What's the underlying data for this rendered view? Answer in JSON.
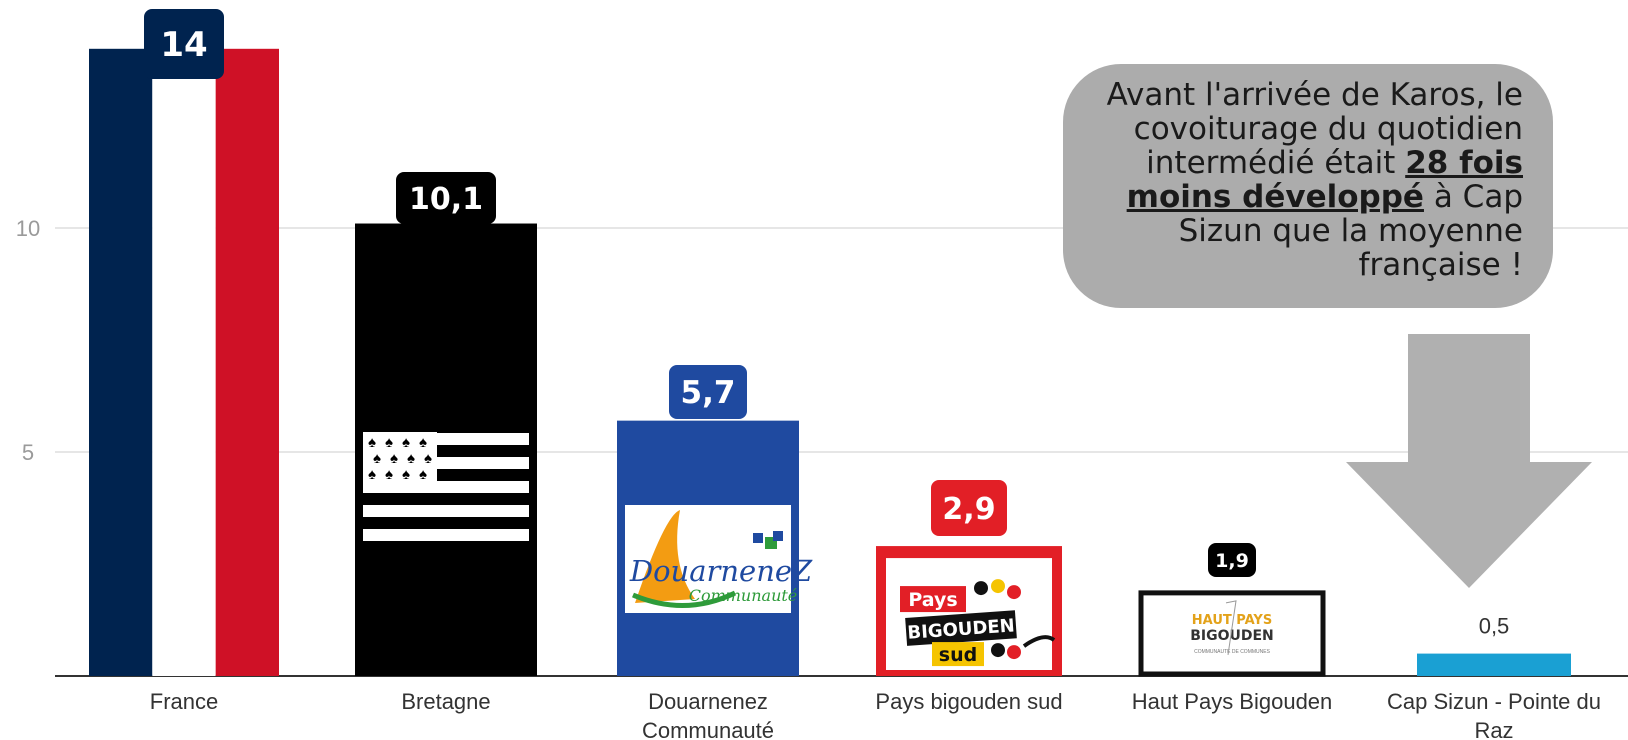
{
  "chart_data": {
    "type": "bar",
    "categories": [
      "France",
      "Bretagne",
      "Douarnenez Communauté",
      "Pays bigouden sud",
      "Haut Pays Bigouden",
      "Cap Sizun - Pointe du Raz"
    ],
    "category_lines": [
      [
        "France"
      ],
      [
        "Bretagne"
      ],
      [
        "Douarnenez",
        "Communauté"
      ],
      [
        "Pays bigouden sud"
      ],
      [
        "Haut Pays Bigouden"
      ],
      [
        "Cap Sizun - Pointe du",
        "Raz"
      ]
    ],
    "values": [
      14,
      10.1,
      5.7,
      2.9,
      1.9,
      0.5
    ],
    "value_labels": [
      "14",
      "10,1",
      "5,7",
      "2,9",
      "1,9",
      "0,5"
    ],
    "yticks": [
      5,
      10
    ],
    "ytick_labels": [
      "5",
      "10"
    ],
    "ylim": [
      0,
      14
    ],
    "grid": true,
    "title": "",
    "xlabel": "",
    "ylabel": ""
  },
  "callout": {
    "line1": "Avant l'arrivée de Karos, le",
    "line2": "covoiturage du quotidien",
    "line3_pre": "intermédié était ",
    "line3_bold": "28 fois",
    "line4_bold": "moins développé",
    "line4_post": " à Cap",
    "line5": "Sizun que la moyenne",
    "line6": "française !"
  },
  "logos": {
    "douarnenez_main": "DouarneneZ",
    "douarnenez_sub": "Communauté",
    "pbs_pays": "Pays",
    "pbs_bigouden": "BIGOUDEN",
    "pbs_sud": "sud",
    "hpb_haut": "HAUT PAYS",
    "hpb_bigouden": "BIGOUDEN",
    "hpb_sub": "COMMUNAUTÉ DE COMMUNES"
  },
  "colors": {
    "france_blue": "#00234f",
    "france_red": "#cf1126",
    "bretagne": "#000000",
    "douarnenez": "#1f4aa0",
    "pbs": "#e21f26",
    "cap_sizun": "#1aa0d3",
    "callout_bg": "#acacac",
    "arrow": "#b0b0b0"
  }
}
